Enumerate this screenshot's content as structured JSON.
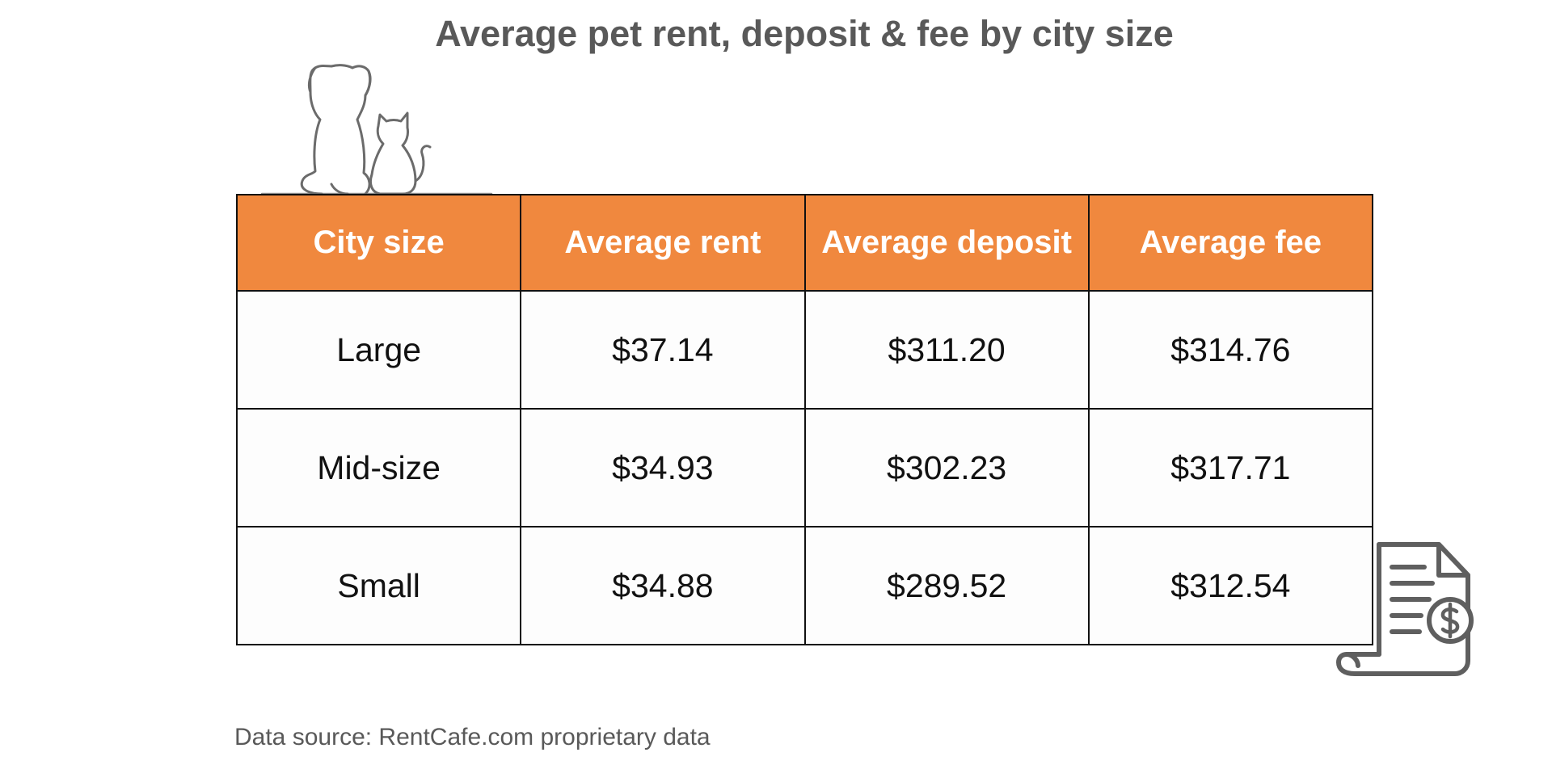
{
  "title": "Average pet rent, deposit & fee by city size",
  "colors": {
    "header_bg": "#f0883e",
    "header_text": "#ffffff",
    "cell_bg": "#fdfdfd",
    "border": "#111111",
    "title_text": "#595959",
    "icon_stroke": "#6b6b6b"
  },
  "icons": {
    "pets": "dog-and-cat-icon",
    "bill": "invoice-dollar-icon"
  },
  "chart_data": {
    "type": "table",
    "columns": [
      "City size",
      "Average rent",
      "Average deposit",
      "Average fee"
    ],
    "rows": [
      [
        "Large",
        "$37.14",
        "$311.20",
        "$314.76"
      ],
      [
        "Mid-size",
        "$34.93",
        "$302.23",
        "$317.71"
      ],
      [
        "Small",
        "$34.88",
        "$289.52",
        "$312.54"
      ]
    ]
  },
  "source": "Data source: RentCafe.com proprietary data"
}
